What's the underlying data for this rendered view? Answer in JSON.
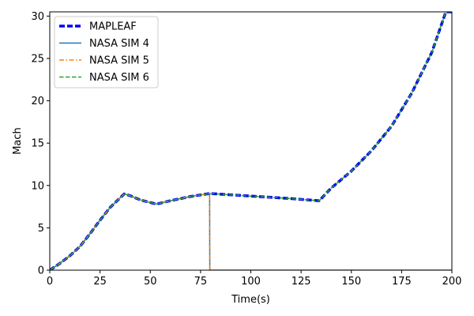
{
  "chart_data": {
    "type": "line",
    "xlabel": "Time(s)",
    "ylabel": "Mach",
    "xlim": [
      0,
      200
    ],
    "ylim": [
      0,
      30.5
    ],
    "xticks": [
      0,
      25,
      50,
      75,
      100,
      125,
      150,
      175,
      200
    ],
    "yticks": [
      0,
      5,
      10,
      15,
      20,
      25,
      30
    ],
    "grid": false,
    "legend_position": "top-left",
    "series": [
      {
        "name": "MAPLEAF",
        "style": "dashed-thick",
        "color": "#0000ff",
        "x": [
          0,
          5,
          10,
          15,
          20,
          25,
          30,
          37,
          40,
          45,
          53,
          60,
          70,
          79.5,
          90,
          100,
          110,
          120,
          134,
          140,
          150,
          160,
          170,
          180,
          190,
          197,
          200
        ],
        "y": [
          0,
          0.8,
          1.7,
          2.8,
          4.3,
          5.9,
          7.4,
          9.0,
          8.8,
          8.3,
          7.8,
          8.2,
          8.7,
          9.05,
          8.9,
          8.75,
          8.6,
          8.45,
          8.2,
          9.7,
          11.7,
          14.1,
          17.0,
          20.9,
          25.7,
          30.5,
          30.5
        ]
      },
      {
        "name": "NASA SIM 4",
        "style": "solid",
        "color": "#1f77b4",
        "x": [
          0,
          5,
          10,
          15,
          20,
          25,
          30,
          37,
          40,
          45,
          53,
          60,
          70,
          79.5,
          79.6,
          200
        ],
        "y": [
          0,
          0.8,
          1.7,
          2.8,
          4.3,
          5.9,
          7.4,
          9.0,
          8.8,
          8.3,
          7.8,
          8.2,
          8.7,
          9.05,
          0,
          0
        ]
      },
      {
        "name": "NASA SIM 5",
        "style": "dash-dot",
        "color": "#ff7f0e",
        "x": [
          0,
          5,
          10,
          15,
          20,
          25,
          30,
          37,
          40,
          45,
          53,
          60,
          70,
          79.5,
          79.6,
          200
        ],
        "y": [
          0,
          0.8,
          1.7,
          2.8,
          4.3,
          5.9,
          7.4,
          9.0,
          8.8,
          8.3,
          7.8,
          8.2,
          8.7,
          9.05,
          0,
          0
        ]
      },
      {
        "name": "NASA SIM 6",
        "style": "dashed",
        "color": "#2ca02c",
        "x": [
          0,
          5,
          10,
          15,
          20,
          25,
          30,
          37,
          40,
          45,
          53,
          60,
          70,
          79.5,
          90,
          100,
          110,
          120,
          134,
          140,
          150,
          160,
          170,
          180,
          190,
          197,
          200
        ],
        "y": [
          0,
          0.8,
          1.7,
          2.8,
          4.3,
          5.9,
          7.4,
          9.0,
          8.8,
          8.3,
          7.8,
          8.2,
          8.7,
          9.05,
          8.9,
          8.75,
          8.6,
          8.45,
          8.2,
          9.7,
          11.7,
          14.1,
          17.0,
          20.9,
          25.7,
          30.5,
          30.5
        ]
      }
    ]
  }
}
